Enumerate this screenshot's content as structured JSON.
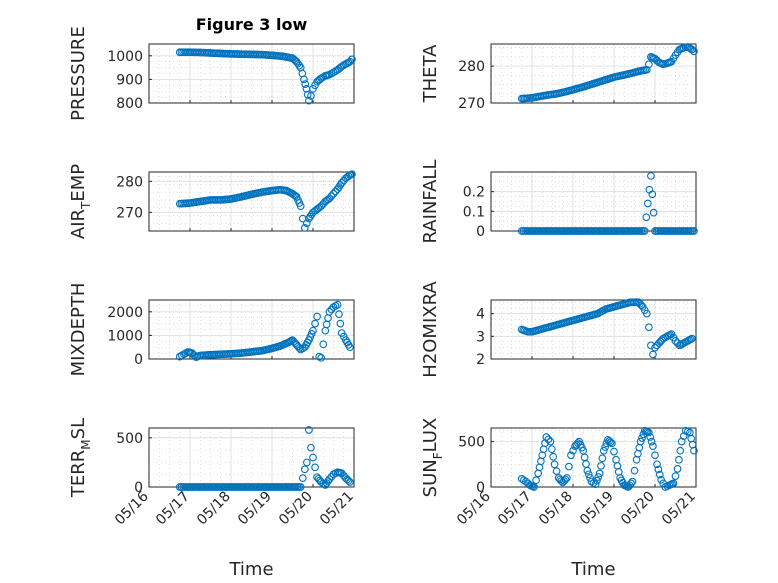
{
  "figure": {
    "title": "Figure 3 low",
    "marker_color": "#0072BD"
  },
  "chart_data": [
    {
      "id": "pressure",
      "type": "scatter",
      "ylabel": "PRESSURE",
      "xlabel": "",
      "title": "Figure 3 low",
      "xlim": [
        0,
        5
      ],
      "ylim": [
        800,
        1050
      ],
      "xticks": [],
      "yticks": [
        800,
        900,
        1000
      ],
      "ytick_labels": [
        "800",
        "900",
        "1000"
      ],
      "x": [
        0.75,
        1.0,
        1.25,
        1.5,
        1.75,
        2.0,
        2.25,
        2.5,
        2.75,
        3.0,
        3.25,
        3.5,
        3.6,
        3.7,
        3.78,
        3.84,
        3.9,
        3.95,
        4.0,
        4.1,
        4.2,
        4.3,
        4.4,
        4.5,
        4.6,
        4.7,
        4.8,
        4.9,
        4.95
      ],
      "y": [
        1015,
        1015,
        1014,
        1012,
        1010,
        1008,
        1007,
        1006,
        1005,
        1002,
        998,
        990,
        975,
        950,
        900,
        860,
        810,
        830,
        860,
        890,
        905,
        915,
        920,
        930,
        940,
        955,
        965,
        975,
        985
      ]
    },
    {
      "id": "theta",
      "type": "scatter",
      "ylabel": "THETA",
      "xlabel": "",
      "xlim": [
        0,
        5
      ],
      "ylim": [
        270,
        286
      ],
      "xticks": [],
      "yticks": [
        270,
        280
      ],
      "ytick_labels": [
        "270",
        "280"
      ],
      "x": [
        0.75,
        0.9,
        1.0,
        1.2,
        1.4,
        1.6,
        1.8,
        2.0,
        2.2,
        2.4,
        2.6,
        2.8,
        3.0,
        3.2,
        3.4,
        3.6,
        3.8,
        3.85,
        3.9,
        4.0,
        4.1,
        4.2,
        4.3,
        4.4,
        4.5,
        4.6,
        4.7,
        4.8,
        4.9,
        4.95
      ],
      "y": [
        271.2,
        271.3,
        271.4,
        271.8,
        272.2,
        272.5,
        273.0,
        273.6,
        274.2,
        274.9,
        275.6,
        276.3,
        277.0,
        277.5,
        278.0,
        278.6,
        279.0,
        280.5,
        282.5,
        282.0,
        281.0,
        280.5,
        280.8,
        281.2,
        283.0,
        284.5,
        285.0,
        285.2,
        284.5,
        284.0
      ]
    },
    {
      "id": "air_temp",
      "type": "scatter",
      "ylabel": "AIR_TEMP",
      "ylabel_main": "AIR",
      "ylabel_sub": "T",
      "ylabel_rest": "EMP",
      "xlabel": "",
      "xlim": [
        0,
        5
      ],
      "ylim": [
        264,
        283
      ],
      "xticks": [],
      "yticks": [
        270,
        280
      ],
      "ytick_labels": [
        "270",
        "280"
      ],
      "x": [
        0.75,
        1.0,
        1.25,
        1.5,
        1.75,
        2.0,
        2.25,
        2.5,
        2.75,
        3.0,
        3.2,
        3.35,
        3.5,
        3.6,
        3.7,
        3.75,
        3.8,
        3.85,
        3.9,
        4.0,
        4.1,
        4.2,
        4.3,
        4.4,
        4.5,
        4.6,
        4.7,
        4.8,
        4.9,
        4.95
      ],
      "y": [
        272.8,
        273.0,
        273.5,
        274.0,
        274.0,
        274.3,
        275.0,
        275.8,
        276.5,
        277.0,
        277.3,
        277.0,
        276.0,
        275.0,
        272.0,
        268.0,
        265.0,
        266.5,
        268.0,
        270.0,
        271.0,
        272.0,
        273.5,
        274.5,
        276.0,
        277.5,
        279.5,
        281.0,
        282.0,
        282.3
      ]
    },
    {
      "id": "rainfall",
      "type": "scatter",
      "ylabel": "RAINFALL",
      "xlabel": "",
      "xlim": [
        0,
        5
      ],
      "ylim": [
        0,
        0.3
      ],
      "xticks": [],
      "yticks": [
        0,
        0.1,
        0.2
      ],
      "ytick_labels": [
        "0",
        "0.1",
        "0.2"
      ],
      "x": [
        0.75,
        1.0,
        1.25,
        1.5,
        1.75,
        2.0,
        2.25,
        2.5,
        2.75,
        3.0,
        3.25,
        3.5,
        3.75,
        3.9,
        4.0,
        4.25,
        4.5,
        4.75,
        4.95
      ],
      "y": [
        0,
        0,
        0,
        0,
        0,
        0,
        0,
        0,
        0,
        0,
        0,
        0,
        0,
        0.28,
        0,
        0,
        0,
        0,
        0
      ]
    },
    {
      "id": "mixdepth",
      "type": "scatter",
      "ylabel": "MIXDEPTH",
      "xlabel": "",
      "xlim": [
        0,
        5
      ],
      "ylim": [
        0,
        2500
      ],
      "xticks": [],
      "yticks": [
        0,
        1000,
        2000
      ],
      "ytick_labels": [
        "0",
        "1000",
        "2000"
      ],
      "x": [
        0.75,
        0.85,
        0.95,
        1.05,
        1.15,
        1.25,
        1.5,
        1.75,
        2.0,
        2.25,
        2.5,
        2.75,
        3.0,
        3.2,
        3.4,
        3.5,
        3.6,
        3.7,
        3.8,
        3.9,
        4.0,
        4.1,
        4.15,
        4.2,
        4.3,
        4.4,
        4.5,
        4.6,
        4.7,
        4.8,
        4.9
      ],
      "y": [
        100,
        200,
        300,
        250,
        80,
        150,
        180,
        200,
        220,
        250,
        300,
        350,
        450,
        550,
        700,
        800,
        600,
        400,
        500,
        800,
        1200,
        1800,
        100,
        50,
        1200,
        2000,
        2200,
        2300,
        1100,
        800,
        500
      ]
    },
    {
      "id": "h2omixra",
      "type": "scatter",
      "ylabel": "H2OMIXRA",
      "xlabel": "",
      "xlim": [
        0,
        5
      ],
      "ylim": [
        2,
        4.6
      ],
      "xticks": [],
      "yticks": [
        2,
        3,
        4
      ],
      "ytick_labels": [
        "2",
        "3",
        "4"
      ],
      "x": [
        0.75,
        0.9,
        1.0,
        1.2,
        1.4,
        1.6,
        1.8,
        2.0,
        2.2,
        2.4,
        2.6,
        2.8,
        3.0,
        3.2,
        3.4,
        3.6,
        3.7,
        3.8,
        3.85,
        3.9,
        3.95,
        4.0,
        4.1,
        4.2,
        4.3,
        4.4,
        4.5,
        4.6,
        4.7,
        4.8,
        4.9
      ],
      "y": [
        3.3,
        3.2,
        3.2,
        3.3,
        3.4,
        3.5,
        3.6,
        3.7,
        3.8,
        3.9,
        4.0,
        4.2,
        4.3,
        4.4,
        4.5,
        4.5,
        4.3,
        4.0,
        3.4,
        2.6,
        2.2,
        2.5,
        2.7,
        2.9,
        3.0,
        3.1,
        2.8,
        2.6,
        2.7,
        2.8,
        2.9
      ]
    },
    {
      "id": "terr_msl",
      "type": "scatter",
      "ylabel": "TERR_MSL",
      "ylabel_main": "TERR",
      "ylabel_sub": "M",
      "ylabel_rest": "SL",
      "xlabel": "Time",
      "xlim": [
        0,
        5
      ],
      "ylim": [
        0,
        600
      ],
      "xticks": [
        0,
        1,
        2,
        3,
        4,
        5
      ],
      "xtick_labels": [
        "05/16",
        "05/17",
        "05/18",
        "05/19",
        "05/20",
        "05/21"
      ],
      "yticks": [
        0,
        500
      ],
      "ytick_labels": [
        "0",
        "500"
      ],
      "x": [
        0.75,
        1.0,
        1.25,
        1.5,
        1.75,
        2.0,
        2.25,
        2.5,
        2.75,
        3.0,
        3.25,
        3.5,
        3.7,
        3.8,
        3.85,
        3.9,
        3.95,
        4.0,
        4.05,
        4.1,
        4.2,
        4.3,
        4.4,
        4.5,
        4.6,
        4.7,
        4.8,
        4.9
      ],
      "y": [
        0,
        0,
        0,
        0,
        0,
        0,
        0,
        0,
        0,
        0,
        0,
        0,
        0,
        180,
        250,
        580,
        400,
        300,
        200,
        100,
        50,
        20,
        80,
        130,
        150,
        140,
        90,
        50
      ]
    },
    {
      "id": "sun_flux",
      "type": "scatter",
      "ylabel": "SUN_FLUX",
      "ylabel_main": "SUN",
      "ylabel_sub": "F",
      "ylabel_rest": "LUX",
      "xlabel": "Time",
      "xlim": [
        0,
        5
      ],
      "ylim": [
        0,
        650
      ],
      "xticks": [
        0,
        1,
        2,
        3,
        4,
        5
      ],
      "xtick_labels": [
        "05/16",
        "05/17",
        "05/18",
        "05/19",
        "05/20",
        "05/21"
      ],
      "yticks": [
        0,
        500
      ],
      "ytick_labels": [
        "0",
        "500"
      ],
      "x": [
        0.75,
        0.85,
        0.95,
        1.05,
        1.15,
        1.25,
        1.35,
        1.45,
        1.55,
        1.65,
        1.75,
        1.85,
        1.95,
        2.05,
        2.15,
        2.25,
        2.35,
        2.45,
        2.55,
        2.65,
        2.75,
        2.85,
        2.95,
        3.05,
        3.15,
        3.25,
        3.35,
        3.45,
        3.55,
        3.65,
        3.75,
        3.85,
        3.95,
        4.05,
        4.15,
        4.25,
        4.35,
        4.45,
        4.55,
        4.65,
        4.75,
        4.85,
        4.95
      ],
      "y": [
        90,
        60,
        20,
        0,
        150,
        350,
        550,
        500,
        250,
        100,
        50,
        100,
        350,
        450,
        500,
        400,
        180,
        60,
        30,
        150,
        400,
        520,
        480,
        300,
        100,
        20,
        0,
        60,
        300,
        500,
        620,
        600,
        450,
        250,
        80,
        0,
        20,
        40,
        200,
        500,
        620,
        600,
        400
      ]
    }
  ]
}
